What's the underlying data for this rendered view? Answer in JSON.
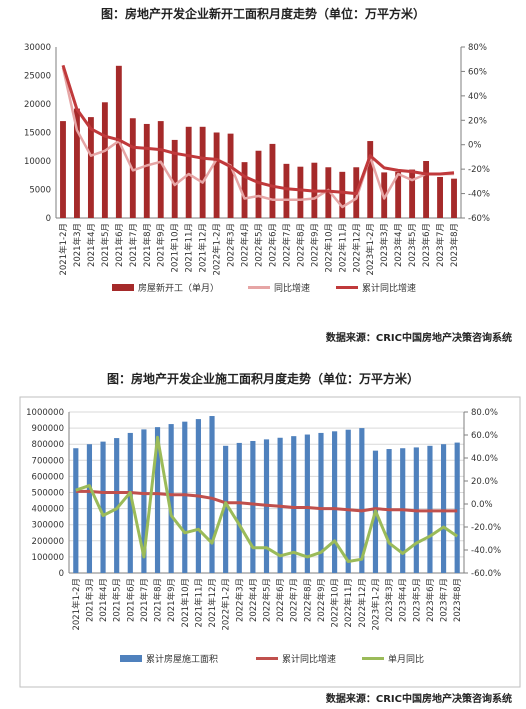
{
  "months": [
    "2021年1-2月",
    "2021年3月",
    "2021年4月",
    "2021年5月",
    "2021年6月",
    "2021年7月",
    "2021年8月",
    "2021年9月",
    "2021年10月",
    "2021年11月",
    "2021年12月",
    "2022年1-2月",
    "2022年3月",
    "2022年4月",
    "2022年5月",
    "2022年6月",
    "2022年7月",
    "2022年8月",
    "2022年9月",
    "2022年10月",
    "2022年11月",
    "2022年12月",
    "2023年1-2月",
    "2023年3月",
    "2023年4月",
    "2023年5月",
    "2023年6月",
    "2023年7月",
    "2023年8月"
  ],
  "chart_data": [
    {
      "type": "bar+line",
      "title": "图：房地产开发企业新开工面积月度走势（单位：万平方米）",
      "source": "数据来源：CRIC中国房地产决策咨询系统",
      "y_left": {
        "min": 0,
        "max": 30000,
        "ticks": [
          "0",
          "5000",
          "10000",
          "15000",
          "20000",
          "25000",
          "30000"
        ]
      },
      "y_right": {
        "min": -60,
        "max": 80,
        "ticks": [
          "-60%",
          "-40%",
          "-20%",
          "0%",
          "20%",
          "40%",
          "60%",
          "80%"
        ]
      },
      "legend": [
        "房屋新开工（单月）",
        "同比增速",
        "累计同比增速"
      ],
      "legend_position": "bottom",
      "grid": false,
      "series": [
        {
          "name": "房屋新开工（单月）",
          "kind": "bar",
          "axis": "left",
          "color": "#a52a2a",
          "values": [
            17000,
            19200,
            17700,
            20300,
            26700,
            17500,
            16500,
            17000,
            13700,
            16000,
            16000,
            15000,
            14800,
            9800,
            11800,
            13000,
            9500,
            9000,
            9700,
            8900,
            8100,
            8900,
            13500,
            8000,
            8100,
            8500,
            10000,
            7200,
            6900
          ]
        },
        {
          "name": "同比增速",
          "kind": "line",
          "axis": "right",
          "color": "#e6a5a5",
          "values": [
            63,
            12,
            -9,
            -5,
            3,
            -21,
            -17,
            -14,
            -33,
            -24,
            -31,
            -12,
            -17,
            -44,
            -42,
            -45,
            -45,
            -45,
            -44,
            -37,
            -51,
            -44,
            -10,
            -44,
            -24,
            -29,
            -24,
            -24,
            -24
          ]
        },
        {
          "name": "累计同比增速",
          "kind": "line",
          "axis": "right",
          "color": "#c0393b",
          "values": [
            65,
            29,
            13,
            7,
            4,
            -2,
            -3,
            -4,
            -7,
            -9,
            -11,
            -12,
            -18,
            -26,
            -31,
            -34,
            -36,
            -37,
            -38,
            -38,
            -39,
            -40,
            -9,
            -19,
            -21,
            -22,
            -24,
            -24,
            -23
          ]
        }
      ]
    },
    {
      "type": "bar+line",
      "title": "图：房地产开发企业施工面积月度走势（单位：万平方米）",
      "source": "数据来源：CRIC中国房地产决策咨询系统",
      "y_left": {
        "min": 0,
        "max": 1000000,
        "ticks": [
          "0",
          "100000",
          "200000",
          "300000",
          "400000",
          "500000",
          "600000",
          "700000",
          "800000",
          "900000",
          "1000000"
        ]
      },
      "y_right": {
        "min": -60,
        "max": 80,
        "ticks": [
          "-60.0%",
          "-40.0%",
          "-20.0%",
          "0.0%",
          "20.0%",
          "40.0%",
          "60.0%",
          "80.0%"
        ]
      },
      "legend": [
        "累计房屋施工面积",
        "累计同比增速",
        "单月同比"
      ],
      "legend_position": "bottom",
      "grid": true,
      "series": [
        {
          "name": "累计房屋施工面积",
          "kind": "bar",
          "axis": "left",
          "color": "#4f81bd",
          "values": [
            775000,
            800000,
            816000,
            838000,
            870000,
            892000,
            906000,
            925000,
            940000,
            956000,
            975000,
            790000,
            808000,
            820000,
            830000,
            840000,
            850000,
            860000,
            870000,
            880000,
            890000,
            900000,
            760000,
            770000,
            775000,
            780000,
            790000,
            800000,
            810000
          ]
        },
        {
          "name": "累计同比增速",
          "kind": "line",
          "axis": "right",
          "color": "#c0504d",
          "values": [
            11,
            11,
            10,
            10,
            10,
            9,
            9,
            8,
            8,
            7,
            5,
            1,
            1,
            0,
            -1,
            -2,
            -3,
            -3,
            -4,
            -4,
            -5,
            -6,
            -4,
            -5,
            -5,
            -6,
            -6,
            -6,
            -6
          ]
        },
        {
          "name": "单月同比",
          "kind": "line",
          "axis": "right",
          "color": "#9bbb59",
          "values": [
            12,
            16,
            -10,
            -4,
            10,
            -46,
            58,
            -10,
            -25,
            -22,
            -34,
            1,
            -18,
            -38,
            -38,
            -45,
            -42,
            -46,
            -42,
            -32,
            -50,
            -48,
            -6,
            -34,
            -43,
            -34,
            -28,
            -20,
            -28
          ]
        }
      ]
    }
  ]
}
